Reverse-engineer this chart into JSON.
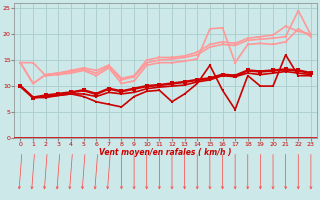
{
  "title": "",
  "xlabel": "Vent moyen/en rafales ( km/h )",
  "xlim": [
    -0.5,
    23.5
  ],
  "ylim": [
    0,
    26
  ],
  "xticks": [
    0,
    1,
    2,
    3,
    4,
    5,
    6,
    7,
    8,
    9,
    10,
    11,
    12,
    13,
    14,
    15,
    16,
    17,
    18,
    19,
    20,
    21,
    22,
    23
  ],
  "yticks": [
    0,
    5,
    10,
    15,
    20,
    25
  ],
  "background_color": "#cce8e8",
  "grid_color": "#aacccc",
  "series": [
    {
      "x": [
        0,
        1,
        2,
        3,
        4,
        5,
        6,
        7,
        8,
        9,
        10,
        11,
        12,
        13,
        14,
        15,
        16,
        17,
        18,
        19,
        20,
        21,
        22,
        23
      ],
      "y": [
        10.0,
        7.8,
        7.8,
        8.2,
        8.5,
        8.0,
        7.0,
        6.5,
        6.0,
        8.0,
        9.0,
        9.2,
        7.0,
        8.5,
        10.5,
        14.0,
        9.2,
        5.5,
        12.0,
        10.0,
        10.0,
        16.0,
        12.0,
        12.0
      ],
      "color": "#cc0000",
      "lw": 1.2,
      "marker": "s",
      "ms": 2.0,
      "zorder": 5
    },
    {
      "x": [
        0,
        1,
        2,
        3,
        4,
        5,
        6,
        7,
        8,
        9,
        10,
        11,
        12,
        13,
        14,
        15,
        16,
        17,
        18,
        19,
        20,
        21,
        22,
        23
      ],
      "y": [
        10.0,
        7.8,
        8.0,
        8.2,
        8.5,
        8.5,
        8.0,
        8.8,
        8.5,
        8.8,
        9.5,
        9.8,
        10.0,
        10.2,
        10.8,
        11.2,
        12.0,
        11.8,
        12.5,
        12.2,
        12.5,
        12.8,
        12.5,
        12.2
      ],
      "color": "#cc0000",
      "lw": 1.2,
      "marker": "s",
      "ms": 2.0,
      "zorder": 5
    },
    {
      "x": [
        0,
        1,
        2,
        3,
        4,
        5,
        6,
        7,
        8,
        9,
        10,
        11,
        12,
        13,
        14,
        15,
        16,
        17,
        18,
        19,
        20,
        21,
        22,
        23
      ],
      "y": [
        10.0,
        7.8,
        8.2,
        8.5,
        8.8,
        9.2,
        8.5,
        9.5,
        9.0,
        9.5,
        10.0,
        10.2,
        10.5,
        10.8,
        11.2,
        11.5,
        12.2,
        12.0,
        13.0,
        12.8,
        13.0,
        13.2,
        13.0,
        12.5
      ],
      "color": "#cc0000",
      "lw": 1.8,
      "marker": "s",
      "ms": 2.5,
      "zorder": 5
    },
    {
      "x": [
        0,
        1,
        2,
        3,
        4,
        5,
        6,
        7,
        8,
        9,
        10,
        11,
        12,
        13,
        14,
        15,
        16,
        17,
        18,
        19,
        20,
        21,
        22,
        23
      ],
      "y": [
        14.5,
        14.5,
        12.0,
        12.2,
        12.5,
        13.0,
        12.0,
        13.5,
        10.5,
        11.0,
        14.0,
        14.5,
        14.5,
        14.8,
        15.2,
        21.0,
        21.2,
        14.5,
        18.0,
        18.2,
        18.0,
        18.5,
        21.0,
        19.5
      ],
      "color": "#ff9999",
      "lw": 1.2,
      "marker": "s",
      "ms": 2.0,
      "zorder": 4
    },
    {
      "x": [
        0,
        1,
        2,
        3,
        4,
        5,
        6,
        7,
        8,
        9,
        10,
        11,
        12,
        13,
        14,
        15,
        16,
        17,
        18,
        19,
        20,
        21,
        22,
        23
      ],
      "y": [
        14.5,
        10.5,
        12.2,
        12.5,
        12.8,
        13.2,
        12.5,
        13.8,
        11.2,
        11.8,
        14.5,
        15.0,
        15.2,
        15.5,
        16.0,
        17.5,
        18.0,
        17.8,
        18.8,
        19.0,
        19.2,
        19.5,
        24.5,
        19.8
      ],
      "color": "#ff9999",
      "lw": 1.2,
      "marker": "s",
      "ms": 2.0,
      "zorder": 4
    },
    {
      "x": [
        0,
        1,
        2,
        3,
        4,
        5,
        6,
        7,
        8,
        9,
        10,
        11,
        12,
        13,
        14,
        15,
        16,
        17,
        18,
        19,
        20,
        21,
        22,
        23
      ],
      "y": [
        14.5,
        10.5,
        12.2,
        12.5,
        13.0,
        13.5,
        13.0,
        14.0,
        11.5,
        12.0,
        15.0,
        15.5,
        15.5,
        15.8,
        16.5,
        18.0,
        18.5,
        18.2,
        19.2,
        19.5,
        19.8,
        21.5,
        20.5,
        20.0
      ],
      "color": "#ff9999",
      "lw": 1.2,
      "marker": "s",
      "ms": 2.0,
      "zorder": 4
    }
  ],
  "arrow_directions": [
    225,
    225,
    225,
    225,
    225,
    225,
    225,
    225,
    270,
    270,
    270,
    270,
    270,
    270,
    270,
    270,
    270,
    270,
    270,
    270,
    270,
    270,
    270,
    270
  ],
  "arrow_color": "#ff4444"
}
